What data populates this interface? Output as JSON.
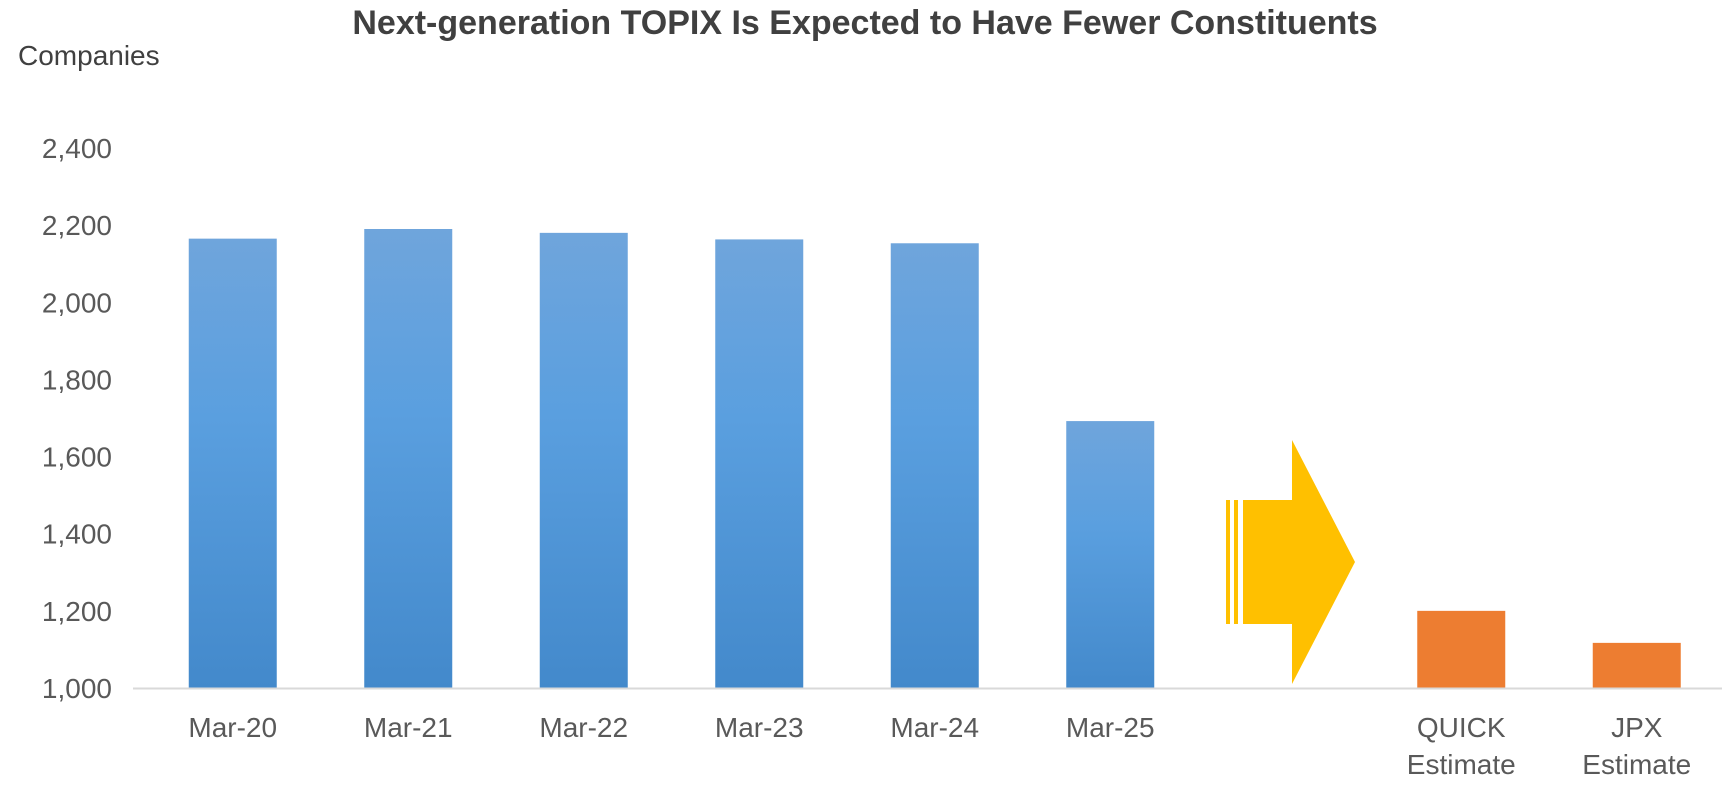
{
  "chart_data": {
    "type": "bar",
    "title": "Next-generation TOPIX Is Expected to Have Fewer Constituents",
    "ylabel": "Companies",
    "xlabel": "",
    "ylim": [
      1000,
      2400
    ],
    "yticks": [
      1000,
      1200,
      1400,
      1600,
      1800,
      2000,
      2200,
      2400
    ],
    "ytick_labels": [
      "1,000",
      "1,200",
      "1,400",
      "1,600",
      "1,800",
      "2,000",
      "2,200",
      "2,400"
    ],
    "grid": false,
    "legend": "none",
    "categories": [
      [
        "Mar-20"
      ],
      [
        "Mar-21"
      ],
      [
        "Mar-22"
      ],
      [
        "Mar-23"
      ],
      [
        "Mar-24"
      ],
      [
        "Mar-25"
      ],
      [],
      [
        "QUICK",
        "Estimate"
      ],
      [
        "JPX",
        "Estimate"
      ]
    ],
    "values": [
      2165,
      2190,
      2180,
      2163,
      2153,
      1692,
      null,
      1200,
      1117
    ],
    "annotation": "arrow between Mar-25 and estimates",
    "colors": {
      "actual_top": "#6fa5dc",
      "actual_mid": "#5a9fdf",
      "actual_bottom": "#4389cb",
      "estimate": "#ed7d31",
      "arrow": "#ffc000",
      "axis": "#d9d9d9"
    }
  }
}
